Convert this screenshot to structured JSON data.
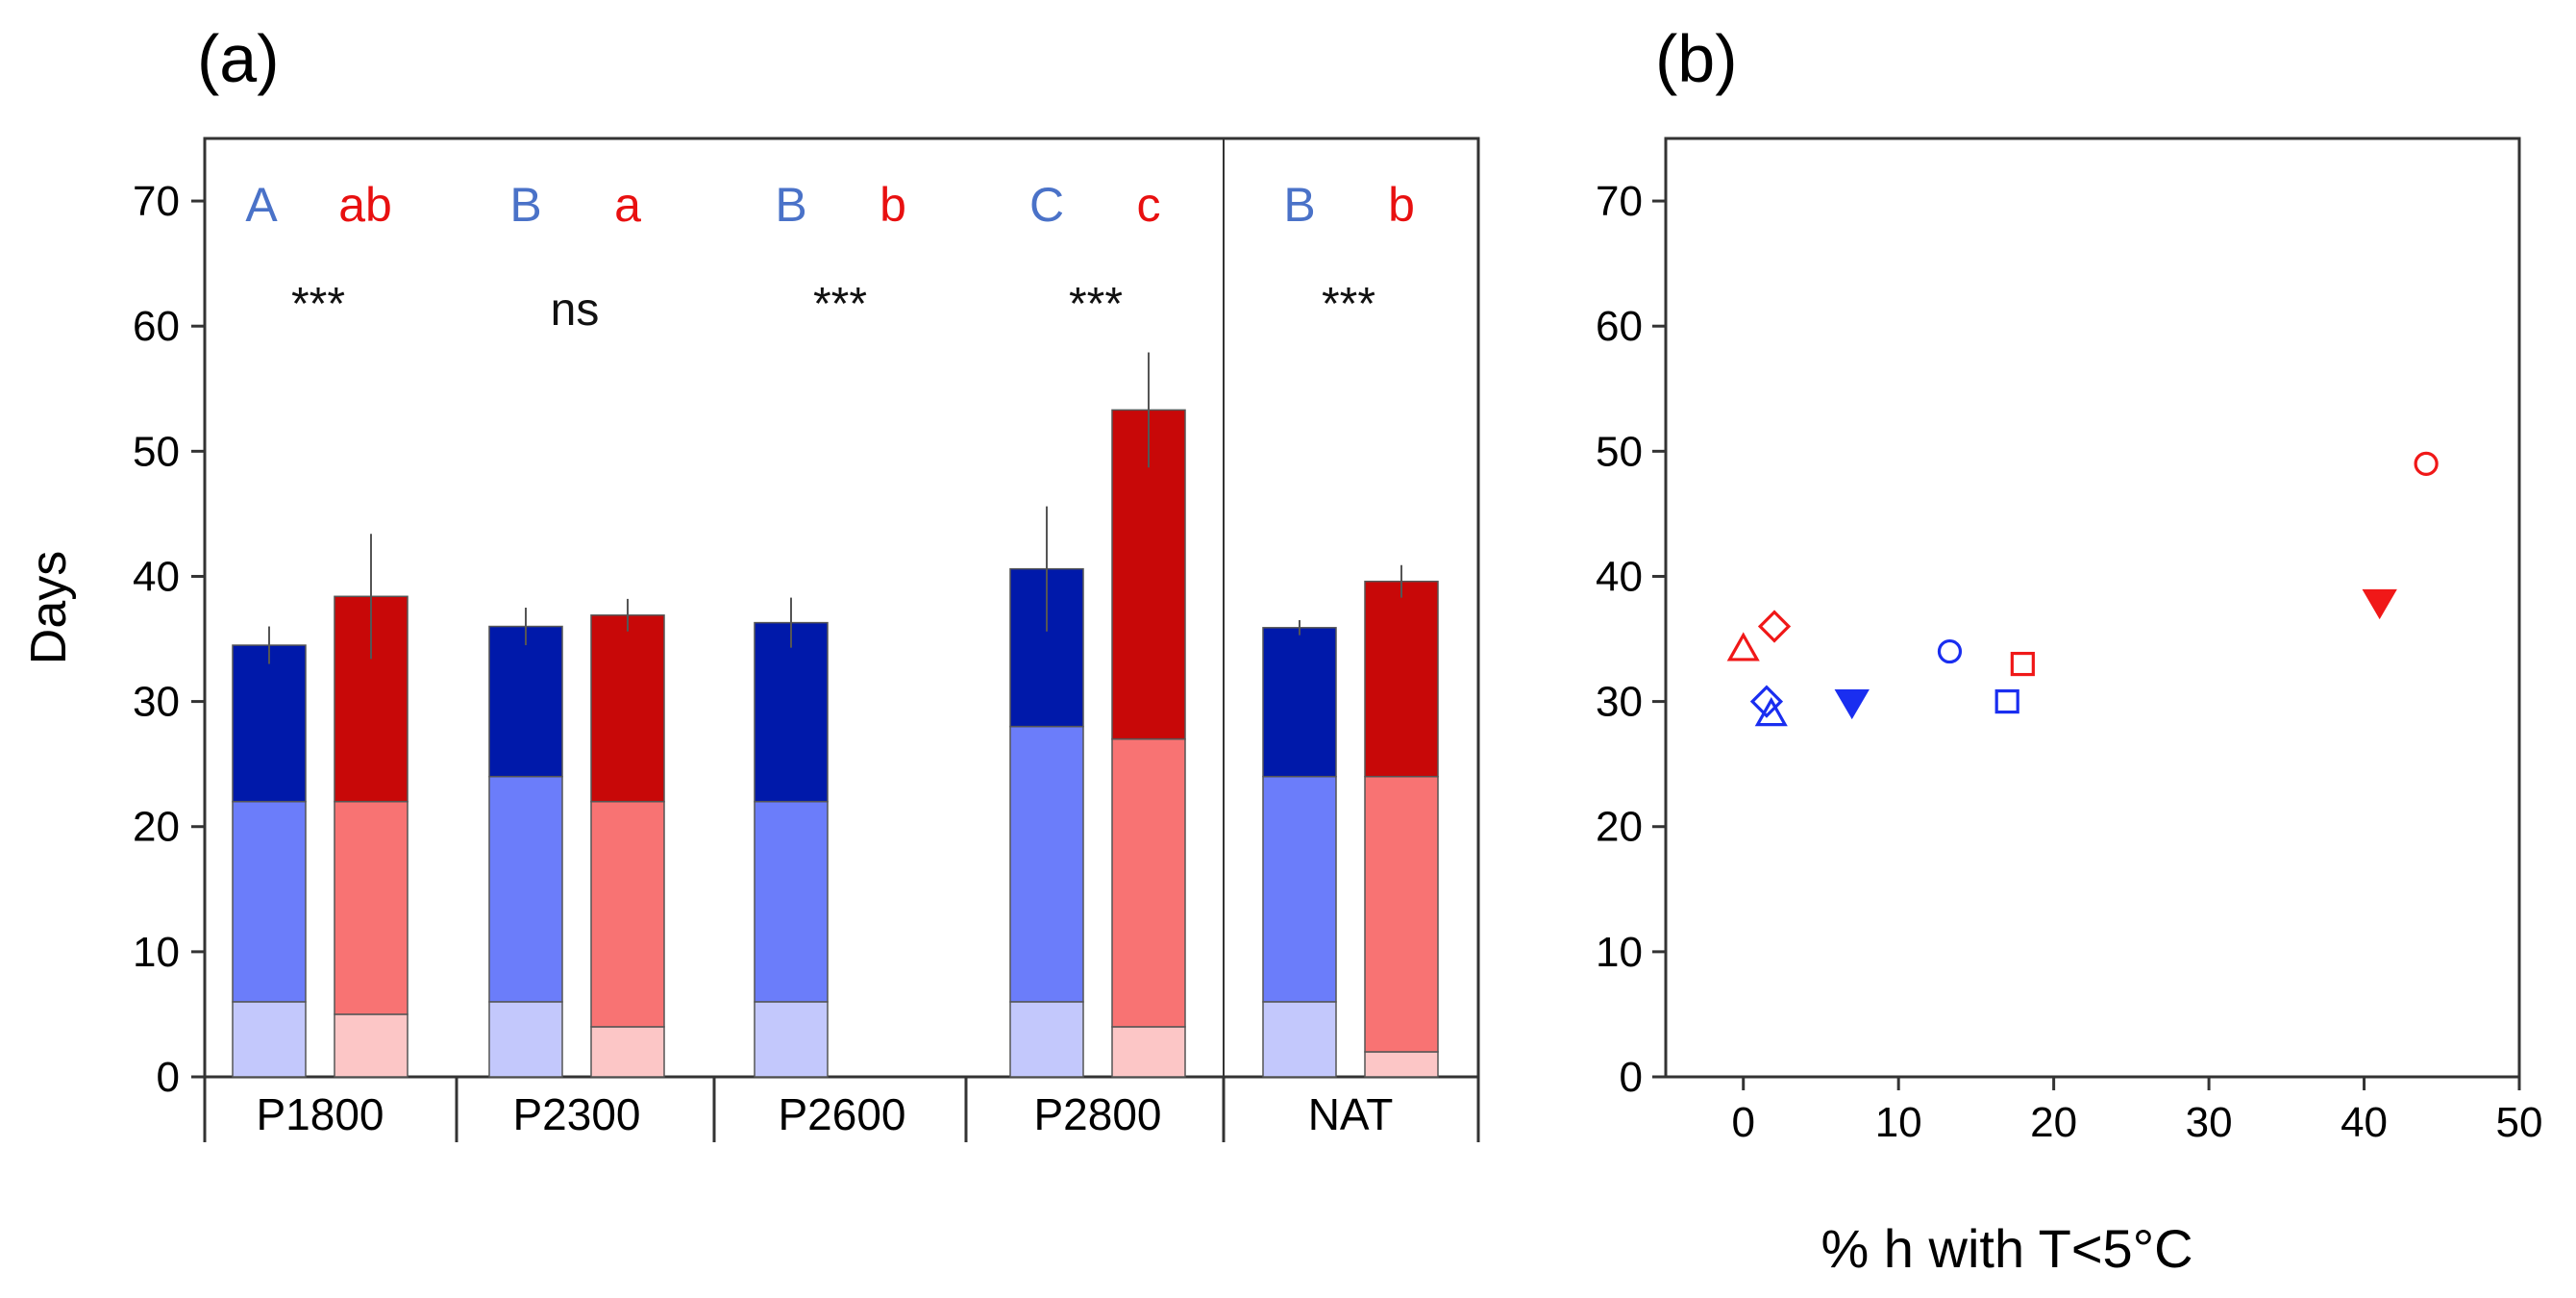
{
  "colors": {
    "blue_dark": "#0019aa",
    "blue_mid": "#6b7dfa",
    "blue_light": "#c3c8fc",
    "red_dark": "#c80808",
    "red_mid": "#f87373",
    "red_light": "#fcc6c6",
    "blue_text": "#4a72c8",
    "red_text": "#e81010",
    "blue_marker": "#1a2ef0",
    "red_marker": "#f01818"
  },
  "chart_data": [
    {
      "id": "a",
      "panel_label": "(a)",
      "type": "bar",
      "stacked": true,
      "ylabel": "Days",
      "ylim": [
        0,
        75
      ],
      "yticks": [
        0,
        10,
        20,
        30,
        40,
        50,
        60,
        70
      ],
      "categories": [
        "P1800",
        "P2300",
        "P2600",
        "P2800",
        "NAT"
      ],
      "groups": [
        {
          "label": "P1800",
          "letters": {
            "blue": "A",
            "red": "ab"
          },
          "significance": "***",
          "blue": {
            "segments": [
              6,
              22,
              34.5
            ],
            "error": 1.5
          },
          "red": {
            "segments": [
              5,
              22,
              38.4
            ],
            "error": 5
          }
        },
        {
          "label": "P2300",
          "letters": {
            "blue": "B",
            "red": "a"
          },
          "significance": "ns",
          "blue": {
            "segments": [
              6,
              24,
              36
            ],
            "error": 1.5
          },
          "red": {
            "segments": [
              4,
              22,
              36.9
            ],
            "error": 1.3
          }
        },
        {
          "label": "P2600",
          "letters": {
            "blue": "B",
            "red": "b"
          },
          "significance": "***",
          "blue": {
            "segments": [
              6,
              22,
              36.3
            ],
            "error": 2
          }
        },
        {
          "label": "P2800",
          "letters": {
            "blue": "C",
            "red": "c"
          },
          "significance": "***",
          "blue": {
            "segments": [
              6,
              28,
              40.6
            ],
            "error": 5
          },
          "red": {
            "segments": [
              4,
              27,
              53.3
            ],
            "error": 4.6
          }
        },
        {
          "label": "NAT",
          "letters": {
            "blue": "B",
            "red": "b"
          },
          "significance": "***",
          "blue": {
            "segments": [
              6,
              24,
              35.9
            ],
            "error": 0.6
          },
          "red": {
            "segments": [
              2,
              24,
              39.6
            ],
            "error": 1.3
          }
        }
      ]
    },
    {
      "id": "b",
      "panel_label": "(b)",
      "type": "scatter",
      "xlabel": "% h with T<5°C",
      "xlim": [
        -5,
        50
      ],
      "ylim": [
        0,
        75
      ],
      "xticks": [
        0,
        10,
        20,
        30,
        40,
        50
      ],
      "yticks": [
        0,
        10,
        20,
        30,
        40,
        50,
        60,
        70
      ],
      "series": [
        {
          "name": "blue",
          "points": [
            {
              "x": 1.5,
              "y": 30,
              "marker": "diamond"
            },
            {
              "x": 1.8,
              "y": 29,
              "marker": "triangle-up"
            },
            {
              "x": 7,
              "y": 30,
              "marker": "triangle-down-filled"
            },
            {
              "x": 13.3,
              "y": 34,
              "marker": "circle"
            },
            {
              "x": 17,
              "y": 30,
              "marker": "square"
            }
          ]
        },
        {
          "name": "red",
          "points": [
            {
              "x": 0,
              "y": 34.2,
              "marker": "triangle-up"
            },
            {
              "x": 2,
              "y": 36,
              "marker": "diamond"
            },
            {
              "x": 18,
              "y": 33,
              "marker": "square"
            },
            {
              "x": 41,
              "y": 38,
              "marker": "triangle-down-filled"
            },
            {
              "x": 44,
              "y": 49,
              "marker": "circle"
            }
          ]
        }
      ]
    }
  ]
}
